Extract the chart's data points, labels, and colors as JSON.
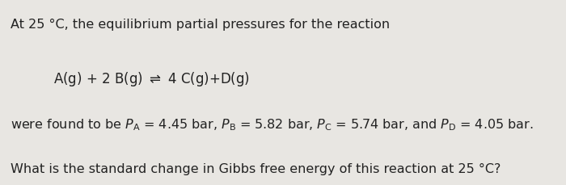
{
  "bg_color": "#e8e6e2",
  "text_color": "#222222",
  "line1": "At 25 °C, the equilibrium partial pressures for the reaction",
  "line4": "What is the standard change in Gibbs free energy of this reaction at 25 °C?",
  "fontsize": 11.5,
  "figsize": [
    7.0,
    2.29
  ],
  "dpi": 100
}
